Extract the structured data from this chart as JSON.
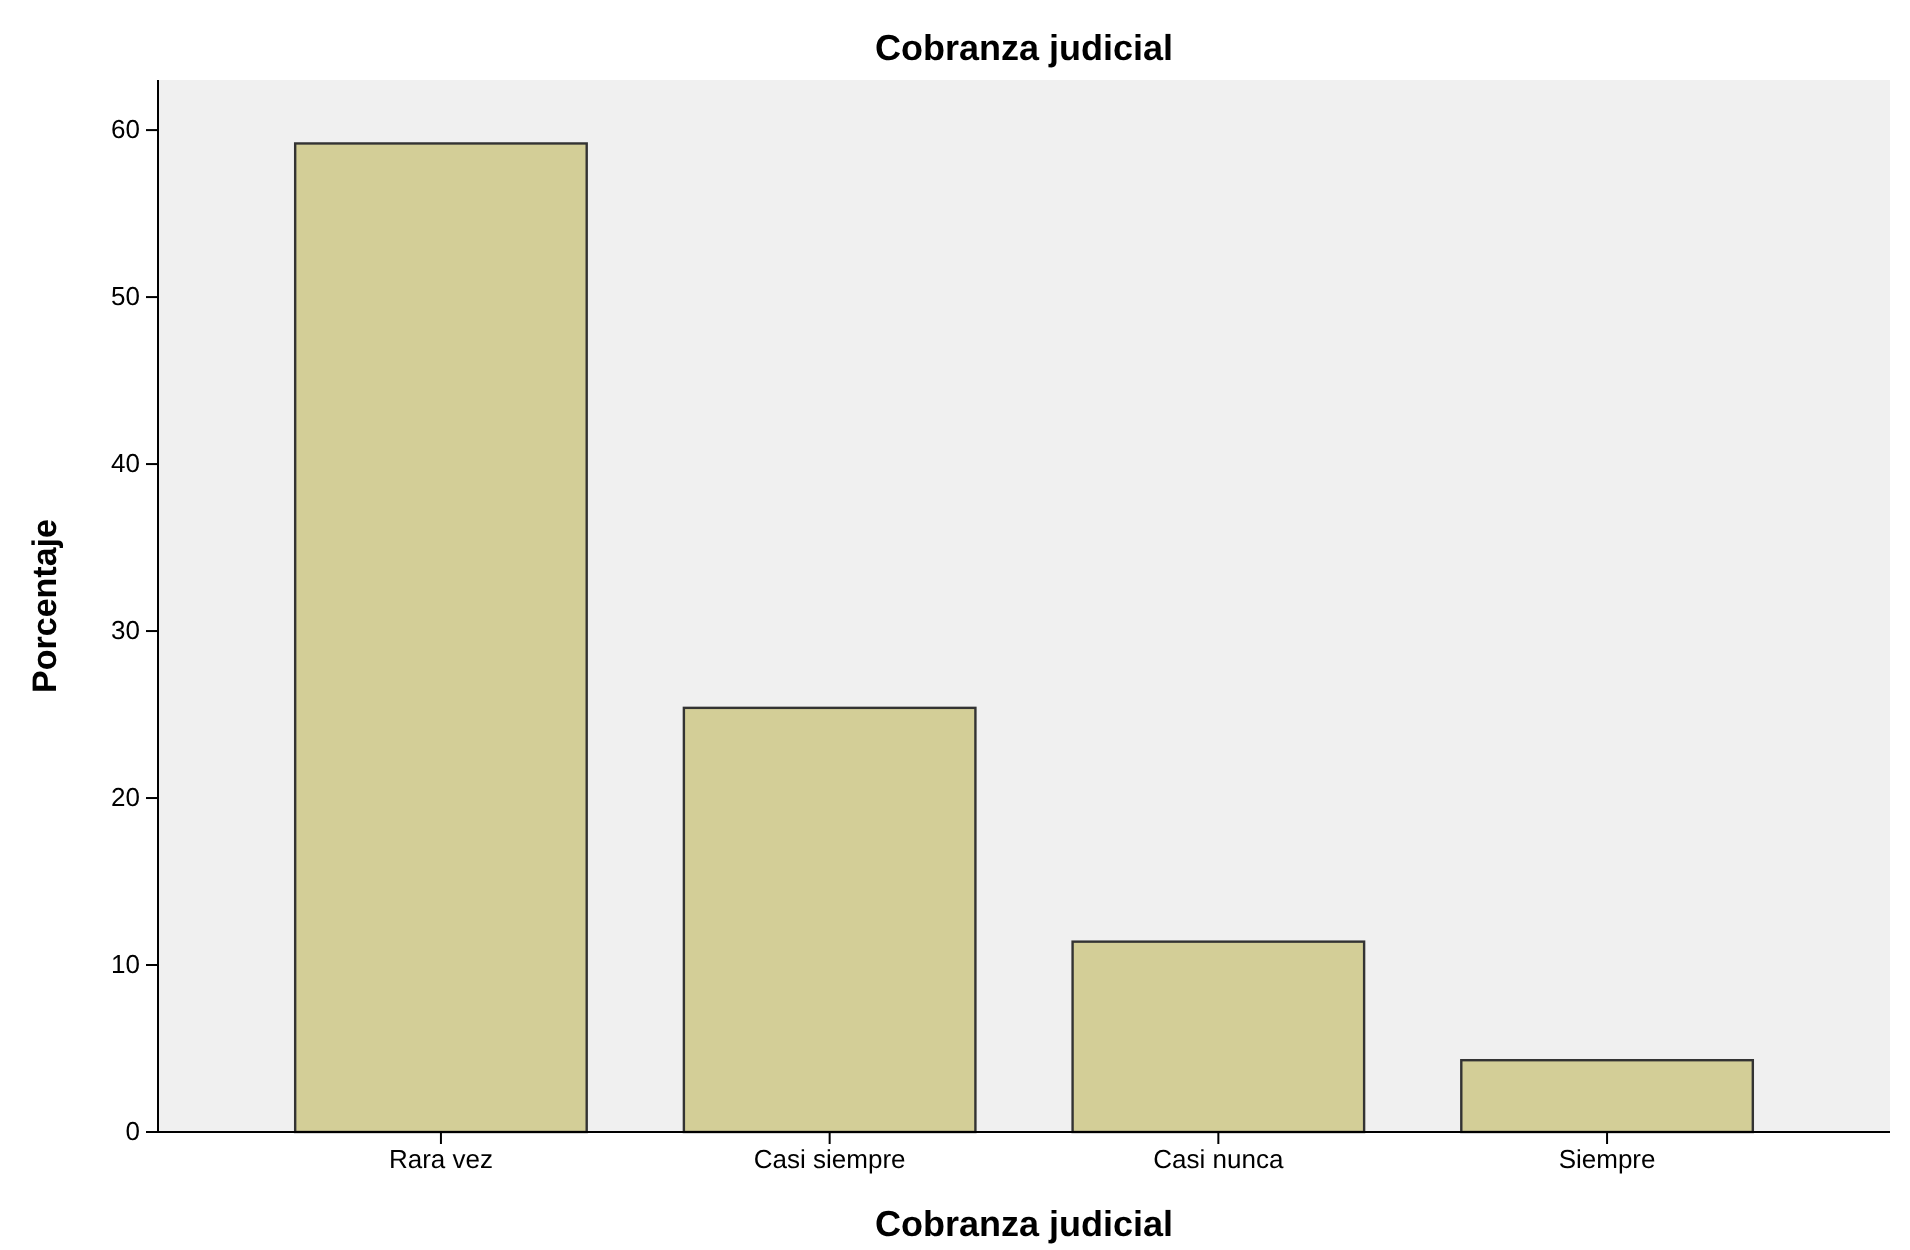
{
  "chart_data": {
    "type": "bar",
    "title": "Cobranza judicial",
    "xlabel": "Cobranza judicial",
    "ylabel": "Porcentaje",
    "categories": [
      "Rara vez",
      "Casi siempre",
      "Casi nunca",
      "Siempre"
    ],
    "values": [
      59.2,
      25.4,
      11.4,
      4.3
    ],
    "color": "#d3ce97",
    "ylim": [
      0,
      63
    ],
    "yticks": [
      0,
      10,
      20,
      30,
      40,
      50,
      60
    ]
  }
}
